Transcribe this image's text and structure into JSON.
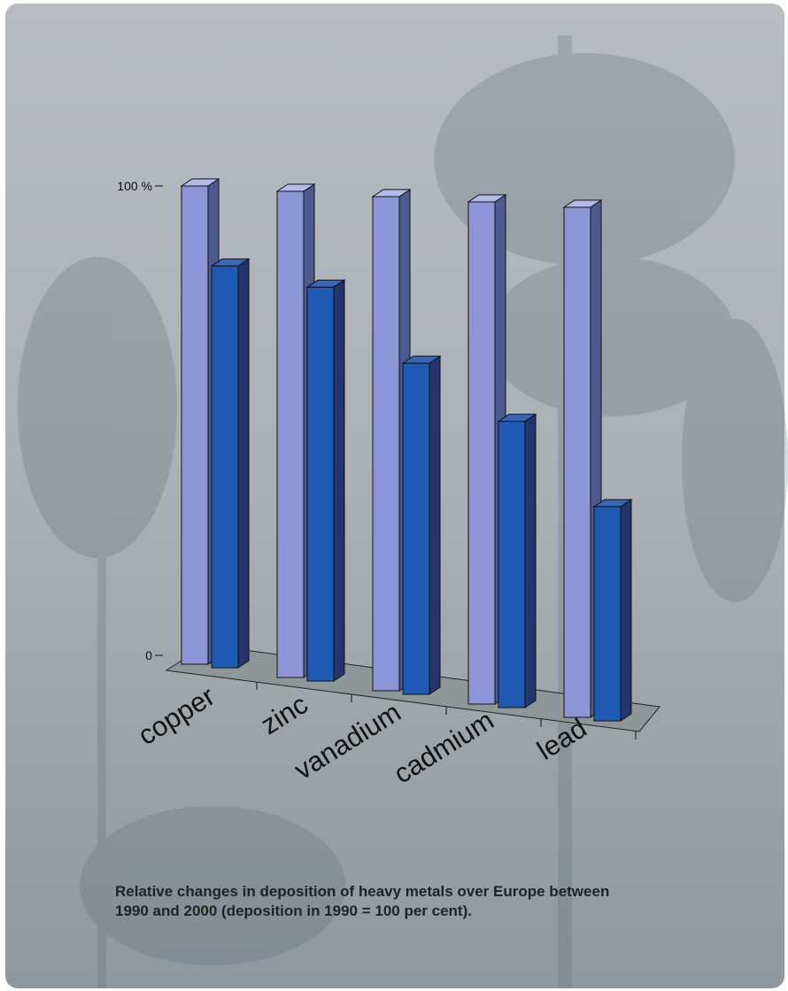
{
  "chart_data": {
    "type": "bar3d",
    "categories": [
      "copper",
      "zinc",
      "vanadium",
      "cadmium",
      "lead"
    ],
    "series": [
      {
        "color": "#8c96d6",
        "values": [
          100,
          100,
          100,
          100,
          100
        ]
      },
      {
        "color": "#1f5bb4",
        "values": [
          84,
          81,
          67,
          57,
          42
        ]
      }
    ],
    "ylim": [
      0,
      100
    ],
    "yticks": [
      0,
      {
        "value": 100,
        "label": "100 %"
      }
    ],
    "caption": "Relative changes in deposition of heavy metals over Europe between 1990 and 2000 (deposition in 1990 = 100 per cent)."
  }
}
